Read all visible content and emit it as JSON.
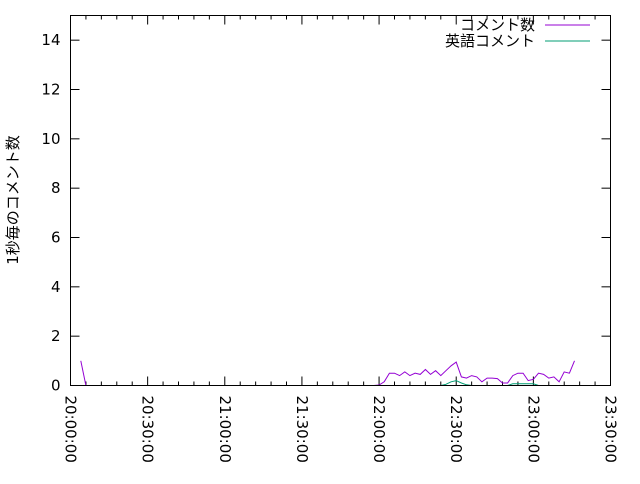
{
  "chart_data": {
    "type": "line",
    "title": "",
    "xlabel": "",
    "ylabel": "1秒毎のコメント数",
    "ylim": [
      0,
      15
    ],
    "xlim": [
      "20:00:00",
      "23:30:00"
    ],
    "xticks": [
      "20:00:00",
      "20:30:00",
      "21:00:00",
      "21:30:00",
      "22:00:00",
      "22:30:00",
      "23:00:00",
      "23:30:00"
    ],
    "yticks": [
      0,
      2,
      4,
      6,
      8,
      10,
      12,
      14
    ],
    "grid": false,
    "legend": "top-right",
    "series": [
      {
        "name": "コメント数",
        "color": "#9400d3",
        "points": [
          [
            "20:04:00",
            1.0
          ],
          [
            "20:06:00",
            0
          ],
          null,
          [
            "21:56:00",
            0
          ],
          [
            "21:58:00",
            0
          ],
          [
            "22:00:00",
            0.02
          ],
          [
            "22:02:00",
            0.15
          ],
          [
            "22:04:00",
            0.5
          ],
          [
            "22:06:00",
            0.5
          ],
          [
            "22:08:00",
            0.4
          ],
          [
            "22:10:00",
            0.55
          ],
          [
            "22:12:00",
            0.4
          ],
          [
            "22:14:00",
            0.5
          ],
          [
            "22:16:00",
            0.45
          ],
          [
            "22:18:00",
            0.65
          ],
          [
            "22:20:00",
            0.45
          ],
          [
            "22:22:00",
            0.6
          ],
          [
            "22:24:00",
            0.4
          ],
          [
            "22:26:00",
            0.6
          ],
          [
            "22:28:00",
            0.8
          ],
          [
            "22:30:00",
            0.95
          ],
          [
            "22:32:00",
            0.35
          ],
          [
            "22:34:00",
            0.3
          ],
          [
            "22:36:00",
            0.4
          ],
          [
            "22:38:00",
            0.35
          ],
          [
            "22:40:00",
            0.15
          ],
          [
            "22:42:00",
            0.3
          ],
          [
            "22:44:00",
            0.3
          ],
          [
            "22:46:00",
            0.28
          ],
          [
            "22:48:00",
            0.1
          ],
          [
            "22:50:00",
            0.1
          ],
          [
            "22:52:00",
            0.4
          ],
          [
            "22:54:00",
            0.5
          ],
          [
            "22:56:00",
            0.5
          ],
          [
            "22:58:00",
            0.2
          ],
          [
            "23:00:00",
            0.25
          ],
          [
            "23:02:00",
            0.5
          ],
          [
            "23:04:00",
            0.45
          ],
          [
            "23:06:00",
            0.3
          ],
          [
            "23:08:00",
            0.35
          ],
          [
            "23:10:00",
            0.15
          ],
          [
            "23:12:00",
            0.55
          ],
          [
            "23:14:00",
            0.5
          ],
          [
            "23:16:00",
            1.0
          ]
        ]
      },
      {
        "name": "英語コメント",
        "color": "#009e73",
        "points": [
          [
            "22:02:00",
            0
          ],
          [
            "22:24:00",
            0
          ],
          [
            "22:26:00",
            0.05
          ],
          [
            "22:28:00",
            0.15
          ],
          [
            "22:30:00",
            0.2
          ],
          [
            "22:32:00",
            0.1
          ],
          [
            "22:34:00",
            0.03
          ],
          [
            "22:36:00",
            0
          ],
          [
            "22:50:00",
            0
          ],
          [
            "22:52:00",
            0.07
          ],
          [
            "23:00:00",
            0.07
          ],
          [
            "23:02:00",
            0
          ],
          [
            "23:14:00",
            0
          ]
        ]
      }
    ]
  }
}
